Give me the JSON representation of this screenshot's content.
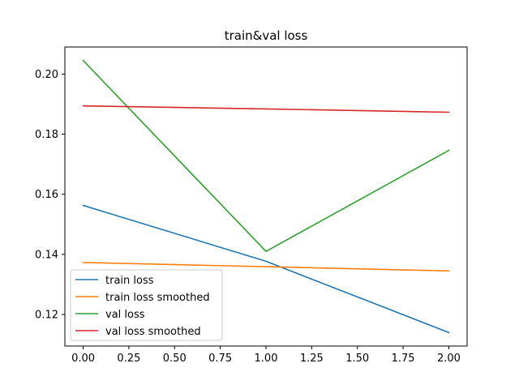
{
  "chart_data": {
    "type": "line",
    "title": "train&val loss",
    "xlabel": "",
    "ylabel": "",
    "x": [
      0.0,
      1.0,
      2.0
    ],
    "xlim": [
      -0.1,
      2.1
    ],
    "ylim": [
      0.1095,
      0.209
    ],
    "xticks": [
      0.0,
      0.25,
      0.5,
      0.75,
      1.0,
      1.25,
      1.5,
      1.75,
      2.0
    ],
    "xtick_labels": [
      "0.00",
      "0.25",
      "0.50",
      "0.75",
      "1.00",
      "1.25",
      "1.50",
      "1.75",
      "2.00"
    ],
    "yticks": [
      0.12,
      0.14,
      0.16,
      0.18,
      0.2
    ],
    "ytick_labels": [
      "0.12",
      "0.14",
      "0.16",
      "0.18",
      "0.20"
    ],
    "grid": false,
    "legend_position": "lower-left",
    "series": [
      {
        "name": "train loss",
        "color": "#1f77b4",
        "values": [
          0.1563,
          0.1377,
          0.114
        ]
      },
      {
        "name": "train loss smoothed",
        "color": "#ff7f0e",
        "values": [
          0.1373,
          0.1359,
          0.1345
        ]
      },
      {
        "name": "val loss",
        "color": "#2ca02c",
        "values": [
          0.2045,
          0.141,
          0.1746
        ]
      },
      {
        "name": "val loss smoothed",
        "color": "#d62728",
        "values": [
          0.1894,
          0.1884,
          0.1873
        ]
      }
    ]
  }
}
